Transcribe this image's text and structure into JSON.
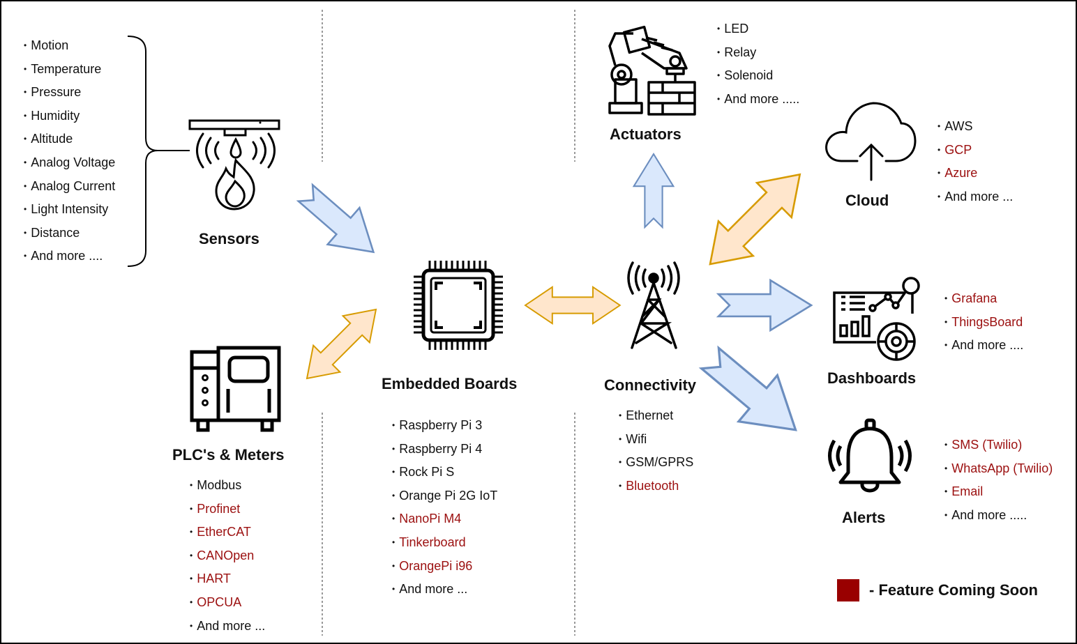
{
  "sections": {
    "sensors": {
      "title": "Sensors",
      "items": [
        {
          "label": "Motion",
          "soon": false
        },
        {
          "label": "Temperature",
          "soon": false
        },
        {
          "label": "Pressure",
          "soon": false
        },
        {
          "label": "Humidity",
          "soon": false
        },
        {
          "label": "Altitude",
          "soon": false
        },
        {
          "label": "Analog Voltage",
          "soon": false
        },
        {
          "label": "Analog Current",
          "soon": false
        },
        {
          "label": "Light Intensity",
          "soon": false
        },
        {
          "label": "Distance",
          "soon": false
        },
        {
          "label": "And more ....",
          "soon": false
        }
      ]
    },
    "plc": {
      "title": "PLC's & Meters",
      "items": [
        {
          "label": "Modbus",
          "soon": false
        },
        {
          "label": "Profinet",
          "soon": true
        },
        {
          "label": "EtherCAT",
          "soon": true
        },
        {
          "label": "CANOpen",
          "soon": true
        },
        {
          "label": "HART",
          "soon": true
        },
        {
          "label": "OPCUA",
          "soon": true
        },
        {
          "label": "And more ...",
          "soon": false
        }
      ]
    },
    "boards": {
      "title": "Embedded Boards",
      "items": [
        {
          "label": "Raspberry Pi 3",
          "soon": false
        },
        {
          "label": "Raspberry Pi 4",
          "soon": false
        },
        {
          "label": "Rock Pi S",
          "soon": false
        },
        {
          "label": "Orange Pi 2G IoT",
          "soon": false
        },
        {
          "label": "NanoPi M4",
          "soon": true
        },
        {
          "label": "Tinkerboard",
          "soon": true
        },
        {
          "label": "OrangePi i96",
          "soon": true
        },
        {
          "label": "And more ...",
          "soon": false
        }
      ]
    },
    "actuators": {
      "title": "Actuators",
      "items": [
        {
          "label": "LED",
          "soon": false
        },
        {
          "label": "Relay",
          "soon": false
        },
        {
          "label": "Solenoid",
          "soon": false
        },
        {
          "label": "And more .....",
          "soon": false
        }
      ]
    },
    "connectivity": {
      "title": "Connectivity",
      "items": [
        {
          "label": "Ethernet",
          "soon": false
        },
        {
          "label": "Wifi",
          "soon": false
        },
        {
          "label": "GSM/GPRS",
          "soon": false
        },
        {
          "label": "Bluetooth",
          "soon": true
        }
      ]
    },
    "cloud": {
      "title": "Cloud",
      "items": [
        {
          "label": "AWS",
          "soon": false
        },
        {
          "label": "GCP",
          "soon": true
        },
        {
          "label": "Azure",
          "soon": true
        },
        {
          "label": "And more ...",
          "soon": false
        }
      ]
    },
    "dashboards": {
      "title": "Dashboards",
      "items": [
        {
          "label": "Grafana",
          "soon": true
        },
        {
          "label": "ThingsBoard",
          "soon": true
        },
        {
          "label": "And more ....",
          "soon": false
        }
      ]
    },
    "alerts": {
      "title": "Alerts",
      "items": [
        {
          "label": "SMS (Twilio)",
          "soon": true
        },
        {
          "label": "WhatsApp (Twilio)",
          "soon": true
        },
        {
          "label": "Email",
          "soon": true
        },
        {
          "label": "And more .....",
          "soon": false
        }
      ]
    }
  },
  "legend": {
    "label": "- Feature Coming Soon"
  },
  "colors": {
    "coming_soon_text": "#9b0f0f",
    "coming_soon_swatch": "#990000",
    "arrow_blue_fill": "#dae8fc",
    "arrow_blue_stroke": "#6c8ebf",
    "arrow_orange_fill": "#ffe6cc",
    "arrow_orange_stroke": "#d79b00"
  }
}
